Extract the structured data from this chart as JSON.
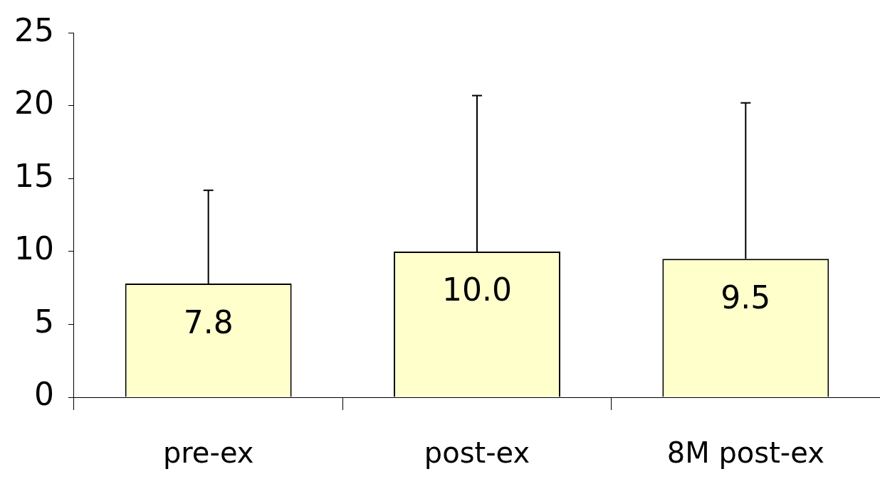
{
  "chart_data": {
    "type": "bar",
    "categories": [
      "pre-ex",
      "post-ex",
      "8M post-ex"
    ],
    "values": [
      7.8,
      10.0,
      9.5
    ],
    "color": "#ffffcc",
    "errors": [
      [
        7.8,
        14.2
      ],
      [
        10.0,
        20.7
      ],
      [
        9.5,
        20.2
      ]
    ],
    "value_labels": [
      "7.8",
      "10.0",
      "9.5"
    ],
    "ylim": [
      0,
      25
    ],
    "yticks": [
      0,
      5,
      10,
      15,
      20,
      25
    ],
    "grid": false,
    "legend": false
  }
}
